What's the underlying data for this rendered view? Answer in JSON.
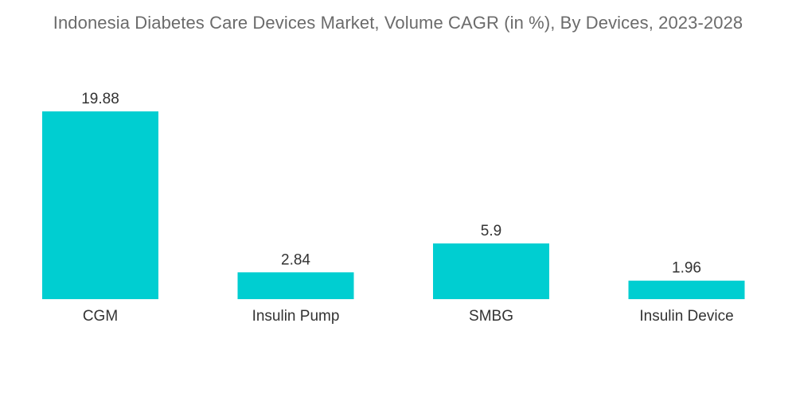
{
  "chart_data": {
    "type": "bar",
    "title": "Indonesia Diabetes Care Devices Market, Volume CAGR (in %), By Devices, 2023-2028",
    "categories": [
      "CGM",
      "Insulin Pump",
      "SMBG",
      "Insulin Device"
    ],
    "values": [
      19.88,
      2.84,
      5.9,
      1.96
    ],
    "value_labels": [
      "19.88",
      "2.84",
      "5.9",
      "1.96"
    ],
    "xlabel": "",
    "ylabel": "",
    "ylim": [
      0,
      19.88
    ],
    "grid": false,
    "bar_color": "#00CED1"
  }
}
